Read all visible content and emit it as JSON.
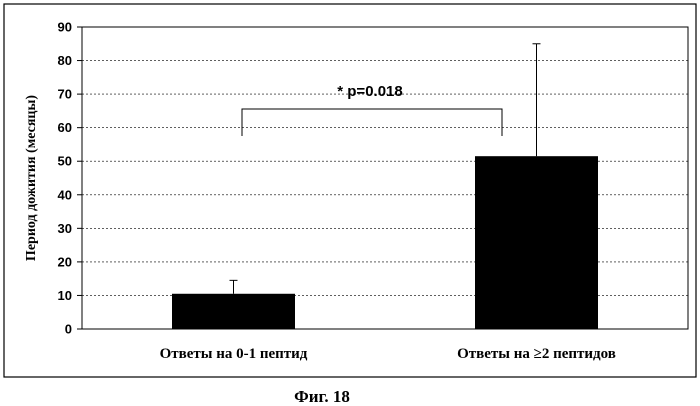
{
  "chart_data": {
    "type": "bar",
    "categories": [
      "Ответы на 0-1 пептид",
      "Ответы на ≥2 пептидов"
    ],
    "values": [
      10.5,
      51.5
    ],
    "error_upper": [
      14.5,
      85
    ],
    "ylabel": "Период дожития (месяцы)",
    "xlabel": "",
    "ylim": [
      0,
      90
    ],
    "yticks": [
      0,
      10,
      20,
      30,
      40,
      50,
      60,
      70,
      80,
      90
    ],
    "grid": true,
    "bar_color": "#000000",
    "annotation": "* p=0.018"
  },
  "caption": "Фиг. 18"
}
